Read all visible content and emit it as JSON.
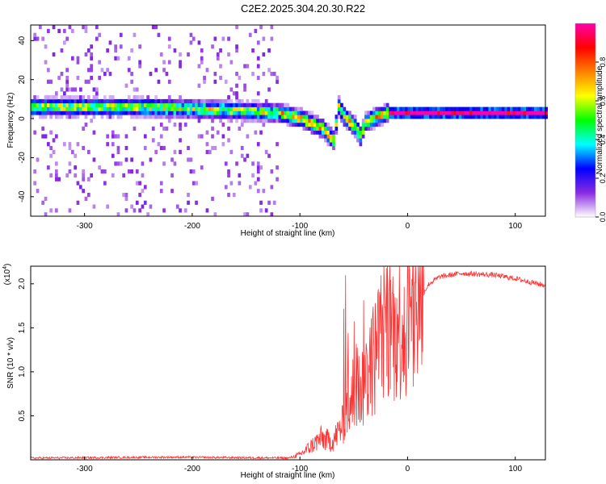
{
  "title": "C2E2.2025.304.20.30.R22",
  "chart_data": [
    {
      "type": "heatmap",
      "xlabel": "Height of straight line (km)",
      "ylabel": "Frequency (Hz)",
      "xlim": [
        -350,
        128
      ],
      "ylim": [
        -50,
        48
      ],
      "xticks": [
        -300,
        -200,
        -100,
        0,
        100
      ],
      "yticks": [
        -40,
        -20,
        0,
        20,
        40
      ],
      "colorbar": {
        "label": "Normalized spectral amplitude",
        "range": [
          0,
          1
        ],
        "ticks": [
          "0.0",
          "0.2",
          "0.4",
          "0.6",
          "0.8"
        ],
        "tick_values": [
          0,
          0.2,
          0.4,
          0.6,
          0.8
        ],
        "colors": [
          "#ffffff",
          "#8a2be2",
          "#0000ff",
          "#00ffff",
          "#00ff00",
          "#ffff00",
          "#ff8000",
          "#ff0000",
          "#ff00aa"
        ]
      },
      "ridge": {
        "x": [
          -350,
          -300,
          -250,
          -200,
          -150,
          -120,
          -100,
          -80,
          -70,
          -65,
          -60,
          -50,
          -45,
          -40,
          -30,
          -20,
          0,
          50,
          100,
          128
        ],
        "y": [
          5,
          5,
          5,
          4,
          3,
          2,
          -1,
          -6,
          -12,
          5,
          0,
          -5,
          -10,
          -3,
          0,
          2,
          2,
          2,
          2,
          2
        ]
      }
    },
    {
      "type": "line",
      "xlabel": "Height of straight line (km)",
      "ylabel": "SNR (10 * v/v)",
      "multiplier": "(x10",
      "multiplier_exp": "4",
      "multiplier_close": ")",
      "xlim": [
        -350,
        128
      ],
      "ylim": [
        0,
        2.2
      ],
      "xticks": [
        -300,
        -200,
        -100,
        0,
        100
      ],
      "yticks": [
        "0.5",
        "1.0",
        "1.5",
        "2.0"
      ],
      "ytick_values": [
        0.5,
        1.0,
        1.5,
        2.0
      ],
      "series": [
        {
          "color": "#ff3333",
          "x": [
            -350,
            -220,
            -110,
            -100,
            -90,
            -80,
            -70,
            -60,
            -50,
            -40,
            -30,
            -20,
            -10,
            0,
            10,
            20,
            30,
            50,
            80,
            100,
            128
          ],
          "y": [
            0.02,
            0.03,
            0.02,
            0.06,
            0.15,
            0.25,
            0.2,
            0.4,
            0.7,
            0.9,
            1.2,
            1.6,
            1.5,
            1.6,
            1.8,
            2.0,
            2.08,
            2.12,
            2.1,
            2.06,
            1.98
          ]
        }
      ]
    }
  ]
}
